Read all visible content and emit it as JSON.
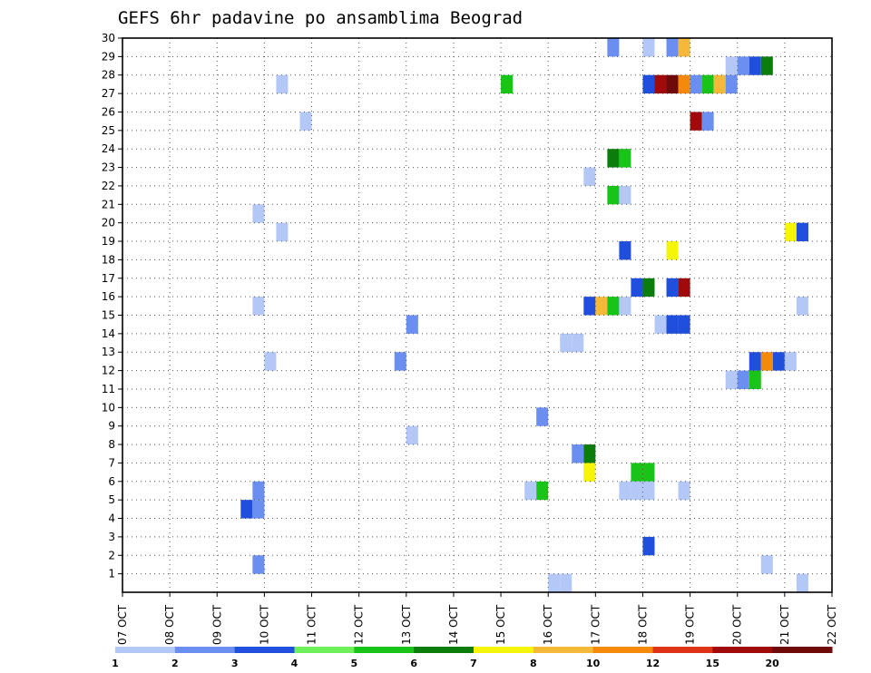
{
  "chart_data": {
    "type": "heatmap",
    "title": "GEFS 6hr padavine po ansamblima Beograd",
    "xlabel": "",
    "ylabel": "",
    "x_ticks": [
      "07 OCT",
      "08 OCT",
      "09 OCT",
      "10 OCT",
      "11 OCT",
      "12 OCT",
      "13 OCT",
      "14 OCT",
      "15 OCT",
      "16 OCT",
      "17 OCT",
      "18 OCT",
      "19 OCT",
      "20 OCT",
      "21 OCT",
      "22 OCT"
    ],
    "y_ticks": [
      "1",
      "2",
      "3",
      "4",
      "5",
      "6",
      "7",
      "8",
      "9",
      "10",
      "11",
      "12",
      "13",
      "14",
      "15",
      "16",
      "17",
      "18",
      "19",
      "20",
      "21",
      "22",
      "23",
      "24",
      "25",
      "26",
      "27",
      "28",
      "29",
      "30"
    ],
    "x_range_days": [
      7,
      22
    ],
    "y_range": [
      0,
      30
    ],
    "grid": "dotted",
    "step_hours": 6,
    "colorbar": {
      "labels": [
        "1",
        "2",
        "3",
        "4",
        "5",
        "6",
        "7",
        "8",
        "10",
        "12",
        "15",
        "20"
      ],
      "colors": [
        "#b4c8f7",
        "#6a8ff0",
        "#1f4fdc",
        "#6ef05a",
        "#18c418",
        "#0a7d0a",
        "#f5f50a",
        "#f5b93a",
        "#f58a0a",
        "#e0341a",
        "#a00a0a",
        "#6e0a0a"
      ]
    },
    "cells": [
      {
        "m": 30,
        "t": "17 OCT 06",
        "c": 2
      },
      {
        "m": 30,
        "t": "18 OCT 00",
        "c": 1
      },
      {
        "m": 30,
        "t": "18 OCT 12",
        "c": 2
      },
      {
        "m": 30,
        "t": "18 OCT 18",
        "c": 8
      },
      {
        "m": 29,
        "t": "19 OCT 18",
        "c": 1
      },
      {
        "m": 29,
        "t": "20 OCT 00",
        "c": 2
      },
      {
        "m": 29,
        "t": "20 OCT 06",
        "c": 3
      },
      {
        "m": 29,
        "t": "20 OCT 12",
        "c": 6
      },
      {
        "m": 28,
        "t": "10 OCT 06",
        "c": 1
      },
      {
        "m": 28,
        "t": "15 OCT 00",
        "c": 5
      },
      {
        "m": 28,
        "t": "18 OCT 00",
        "c": 3
      },
      {
        "m": 28,
        "t": "18 OCT 06",
        "c": 15
      },
      {
        "m": 28,
        "t": "18 OCT 12",
        "c": 20
      },
      {
        "m": 28,
        "t": "18 OCT 18",
        "c": 10
      },
      {
        "m": 28,
        "t": "19 OCT 00",
        "c": 2
      },
      {
        "m": 28,
        "t": "19 OCT 06",
        "c": 5
      },
      {
        "m": 28,
        "t": "19 OCT 12",
        "c": 8
      },
      {
        "m": 28,
        "t": "19 OCT 18",
        "c": 2
      },
      {
        "m": 26,
        "t": "10 OCT 18",
        "c": 1
      },
      {
        "m": 26,
        "t": "19 OCT 00",
        "c": 15
      },
      {
        "m": 26,
        "t": "19 OCT 06",
        "c": 2
      },
      {
        "m": 24,
        "t": "17 OCT 06",
        "c": 6
      },
      {
        "m": 24,
        "t": "17 OCT 12",
        "c": 5
      },
      {
        "m": 23,
        "t": "16 OCT 18",
        "c": 1
      },
      {
        "m": 22,
        "t": "17 OCT 06",
        "c": 5
      },
      {
        "m": 22,
        "t": "17 OCT 12",
        "c": 1
      },
      {
        "m": 21,
        "t": "09 OCT 18",
        "c": 1
      },
      {
        "m": 20,
        "t": "10 OCT 06",
        "c": 1
      },
      {
        "m": 20,
        "t": "21 OCT 00",
        "c": 7
      },
      {
        "m": 20,
        "t": "21 OCT 06",
        "c": 3
      },
      {
        "m": 19,
        "t": "17 OCT 12",
        "c": 3
      },
      {
        "m": 19,
        "t": "18 OCT 12",
        "c": 7
      },
      {
        "m": 17,
        "t": "17 OCT 18",
        "c": 3
      },
      {
        "m": 17,
        "t": "18 OCT 00",
        "c": 6
      },
      {
        "m": 17,
        "t": "18 OCT 12",
        "c": 3
      },
      {
        "m": 17,
        "t": "18 OCT 18",
        "c": 15
      },
      {
        "m": 16,
        "t": "09 OCT 18",
        "c": 1
      },
      {
        "m": 16,
        "t": "16 OCT 18",
        "c": 3
      },
      {
        "m": 16,
        "t": "17 OCT 00",
        "c": 8
      },
      {
        "m": 16,
        "t": "17 OCT 06",
        "c": 5
      },
      {
        "m": 16,
        "t": "17 OCT 12",
        "c": 1
      },
      {
        "m": 16,
        "t": "21 OCT 06",
        "c": 1
      },
      {
        "m": 15,
        "t": "13 OCT 00",
        "c": 2
      },
      {
        "m": 15,
        "t": "18 OCT 06",
        "c": 1
      },
      {
        "m": 15,
        "t": "18 OCT 12",
        "c": 3
      },
      {
        "m": 15,
        "t": "18 OCT 18",
        "c": 3
      },
      {
        "m": 14,
        "t": "16 OCT 06",
        "c": 1
      },
      {
        "m": 14,
        "t": "16 OCT 12",
        "c": 1
      },
      {
        "m": 13,
        "t": "10 OCT 00",
        "c": 1
      },
      {
        "m": 13,
        "t": "12 OCT 18",
        "c": 2
      },
      {
        "m": 13,
        "t": "20 OCT 06",
        "c": 3
      },
      {
        "m": 13,
        "t": "20 OCT 12",
        "c": 10
      },
      {
        "m": 13,
        "t": "20 OCT 18",
        "c": 3
      },
      {
        "m": 13,
        "t": "21 OCT 00",
        "c": 1
      },
      {
        "m": 12,
        "t": "19 OCT 18",
        "c": 1
      },
      {
        "m": 12,
        "t": "20 OCT 00",
        "c": 2
      },
      {
        "m": 12,
        "t": "20 OCT 06",
        "c": 5
      },
      {
        "m": 10,
        "t": "15 OCT 18",
        "c": 2
      },
      {
        "m": 9,
        "t": "13 OCT 00",
        "c": 1
      },
      {
        "m": 8,
        "t": "16 OCT 12",
        "c": 2
      },
      {
        "m": 8,
        "t": "16 OCT 18",
        "c": 6
      },
      {
        "m": 7,
        "t": "16 OCT 18",
        "c": 7
      },
      {
        "m": 7,
        "t": "17 OCT 18",
        "c": 5
      },
      {
        "m": 7,
        "t": "18 OCT 00",
        "c": 5
      },
      {
        "m": 6,
        "t": "09 OCT 18",
        "c": 2
      },
      {
        "m": 6,
        "t": "15 OCT 12",
        "c": 1
      },
      {
        "m": 6,
        "t": "15 OCT 18",
        "c": 5
      },
      {
        "m": 6,
        "t": "17 OCT 12",
        "c": 1
      },
      {
        "m": 6,
        "t": "17 OCT 18",
        "c": 1
      },
      {
        "m": 6,
        "t": "18 OCT 00",
        "c": 1
      },
      {
        "m": 6,
        "t": "18 OCT 18",
        "c": 1
      },
      {
        "m": 5,
        "t": "09 OCT 12",
        "c": 3
      },
      {
        "m": 5,
        "t": "09 OCT 18",
        "c": 2
      },
      {
        "m": 3,
        "t": "18 OCT 00",
        "c": 3
      },
      {
        "m": 2,
        "t": "09 OCT 18",
        "c": 2
      },
      {
        "m": 2,
        "t": "20 OCT 12",
        "c": 1
      },
      {
        "m": 1,
        "t": "16 OCT 00",
        "c": 1
      },
      {
        "m": 1,
        "t": "16 OCT 06",
        "c": 1
      },
      {
        "m": 1,
        "t": "21 OCT 06",
        "c": 1
      }
    ]
  }
}
